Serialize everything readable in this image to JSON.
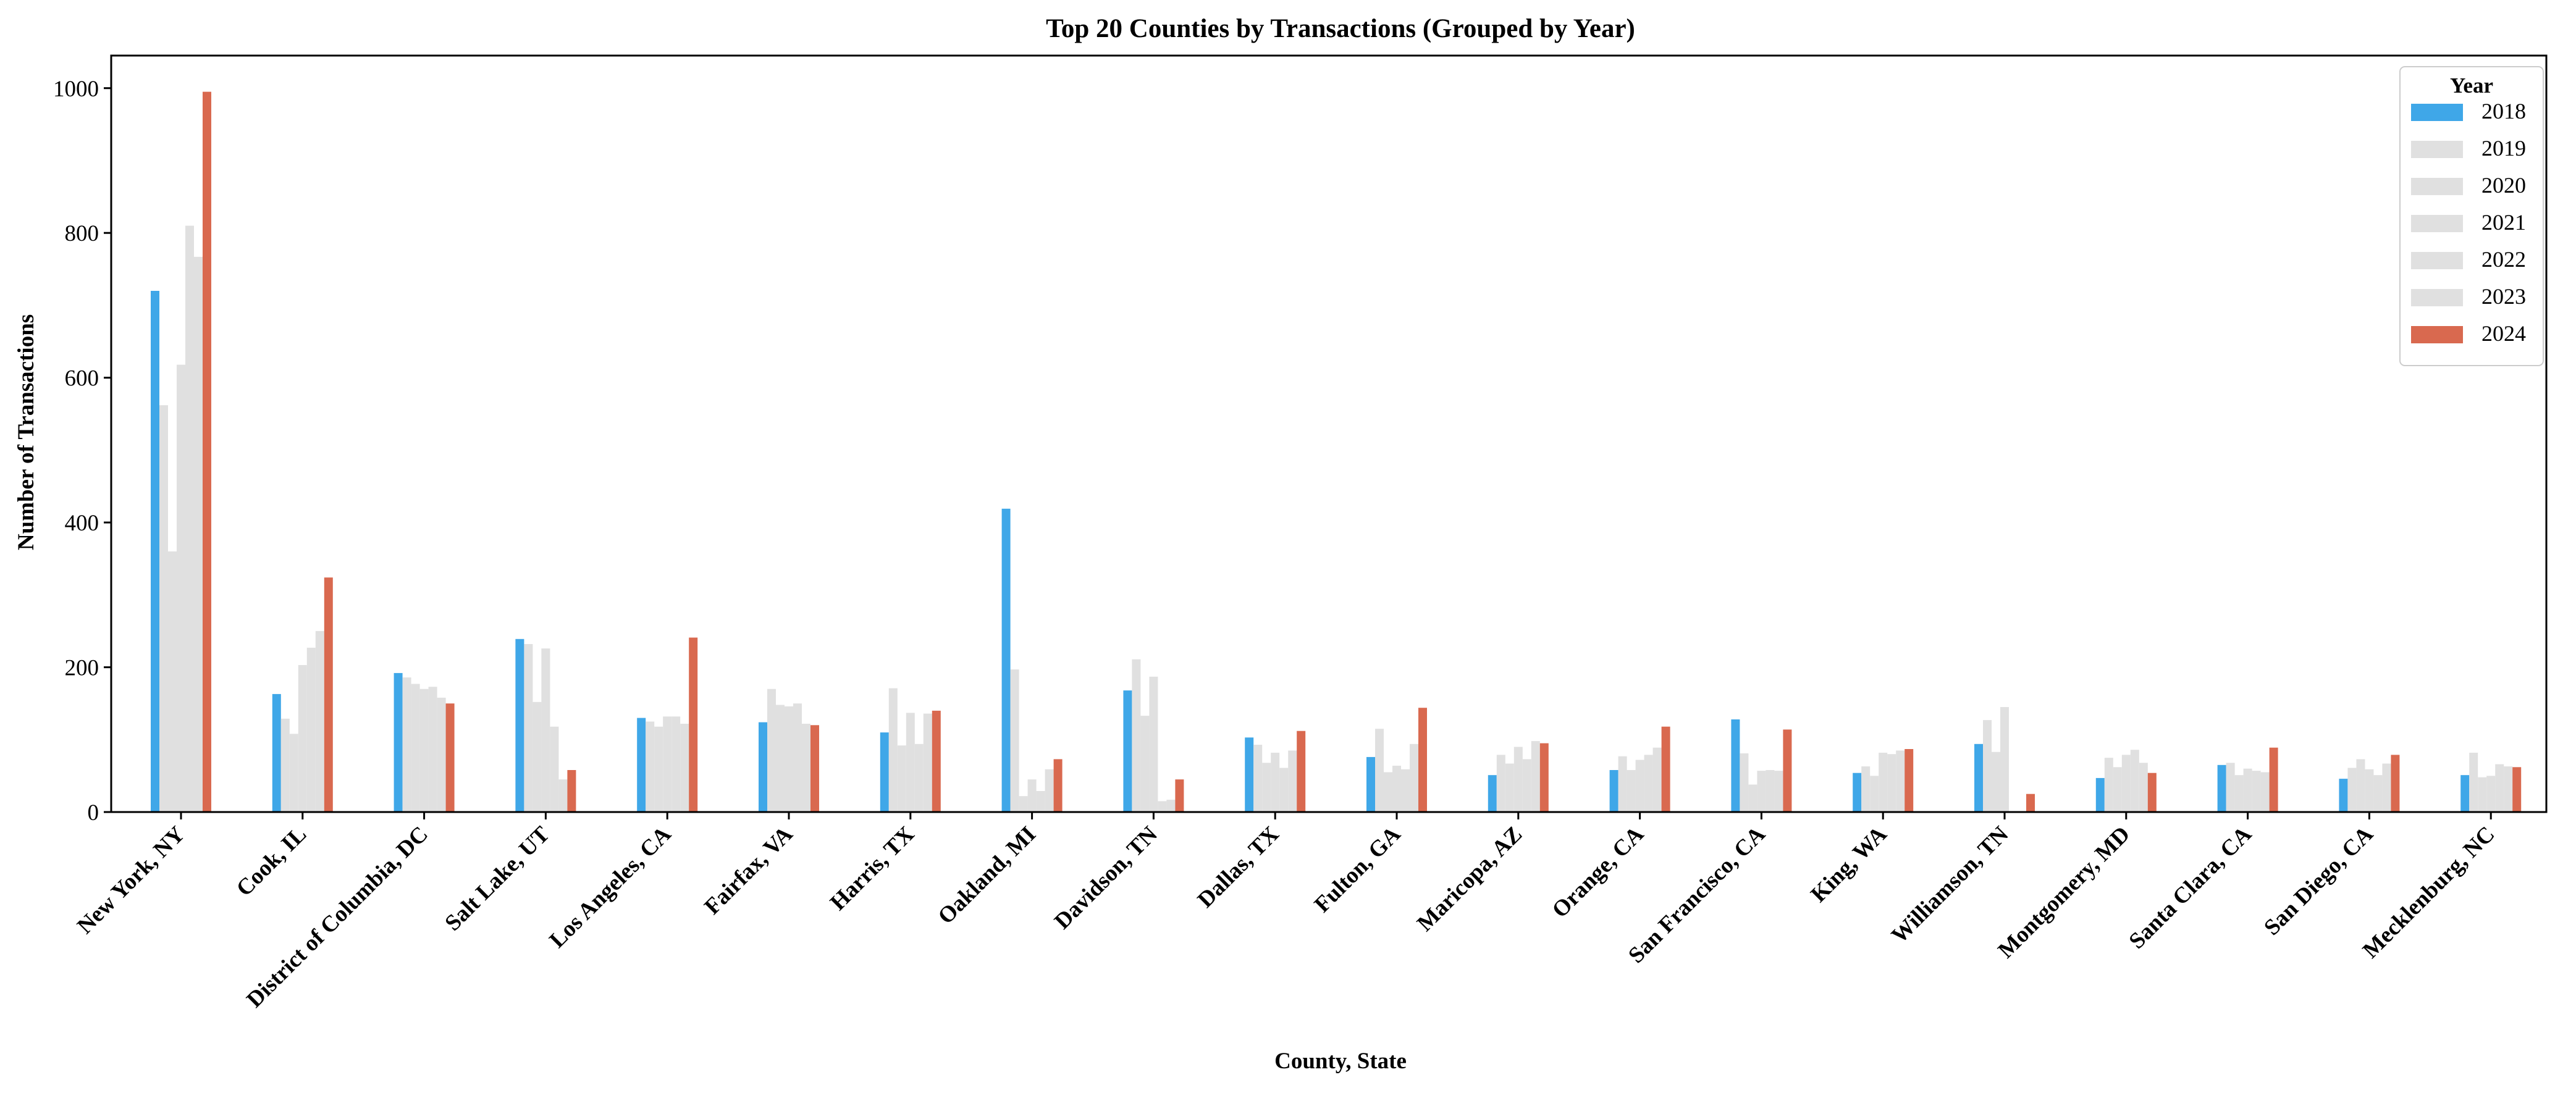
{
  "chart_data": {
    "type": "bar",
    "title": "Top 20 Counties by Transactions (Grouped by Year)",
    "xlabel": "County, State",
    "ylabel": "Number of Transactions",
    "ylim": [
      0,
      1045
    ],
    "yticks": [
      0,
      200,
      400,
      600,
      800,
      1000
    ],
    "grid": false,
    "legend": {
      "title": "Year",
      "placement": "top-right"
    },
    "colors": {
      "2018": "#3fa7e8",
      "2019": "#e0e0e0",
      "2020": "#e0e0e0",
      "2021": "#e0e0e0",
      "2022": "#e0e0e0",
      "2023": "#e0e0e0",
      "2024": "#d9694f"
    },
    "categories": [
      "New York, NY",
      "Cook, IL",
      "District of Columbia, DC",
      "Salt Lake, UT",
      "Los Angeles, CA",
      "Fairfax, VA",
      "Harris, TX",
      "Oakland, MI",
      "Davidson, TN",
      "Dallas, TX",
      "Fulton, GA",
      "Maricopa, AZ",
      "Orange, CA",
      "San Francisco, CA",
      "King, WA",
      "Williamson, TN",
      "Montgomery, MD",
      "Santa Clara, CA",
      "San Diego, CA",
      "Mecklenburg, NC"
    ],
    "series": [
      {
        "name": "2018",
        "values": [
          720,
          163,
          192,
          239,
          130,
          124,
          110,
          419,
          168,
          103,
          76,
          51,
          58,
          128,
          54,
          94,
          47,
          65,
          46,
          51
        ]
      },
      {
        "name": "2019",
        "values": [
          562,
          129,
          186,
          232,
          125,
          170,
          171,
          197,
          211,
          93,
          115,
          79,
          77,
          81,
          63,
          127,
          75,
          68,
          61,
          82
        ]
      },
      {
        "name": "2020",
        "values": [
          360,
          108,
          177,
          152,
          118,
          148,
          92,
          22,
          133,
          68,
          55,
          67,
          58,
          38,
          50,
          83,
          62,
          51,
          73,
          48
        ]
      },
      {
        "name": "2021",
        "values": [
          618,
          203,
          170,
          226,
          132,
          146,
          137,
          45,
          187,
          82,
          64,
          90,
          72,
          57,
          82,
          145,
          79,
          60,
          59,
          50
        ]
      },
      {
        "name": "2022",
        "values": [
          810,
          227,
          173,
          118,
          132,
          150,
          94,
          29,
          15,
          61,
          59,
          73,
          79,
          58,
          80,
          0,
          86,
          57,
          51,
          66
        ]
      },
      {
        "name": "2023",
        "values": [
          767,
          250,
          158,
          45,
          122,
          122,
          136,
          59,
          17,
          85,
          94,
          98,
          89,
          57,
          85,
          0,
          68,
          55,
          67,
          63
        ]
      },
      {
        "name": "2024",
        "values": [
          995,
          324,
          150,
          58,
          241,
          120,
          140,
          73,
          45,
          112,
          144,
          95,
          118,
          114,
          87,
          25,
          54,
          89,
          79,
          62
        ]
      }
    ]
  }
}
